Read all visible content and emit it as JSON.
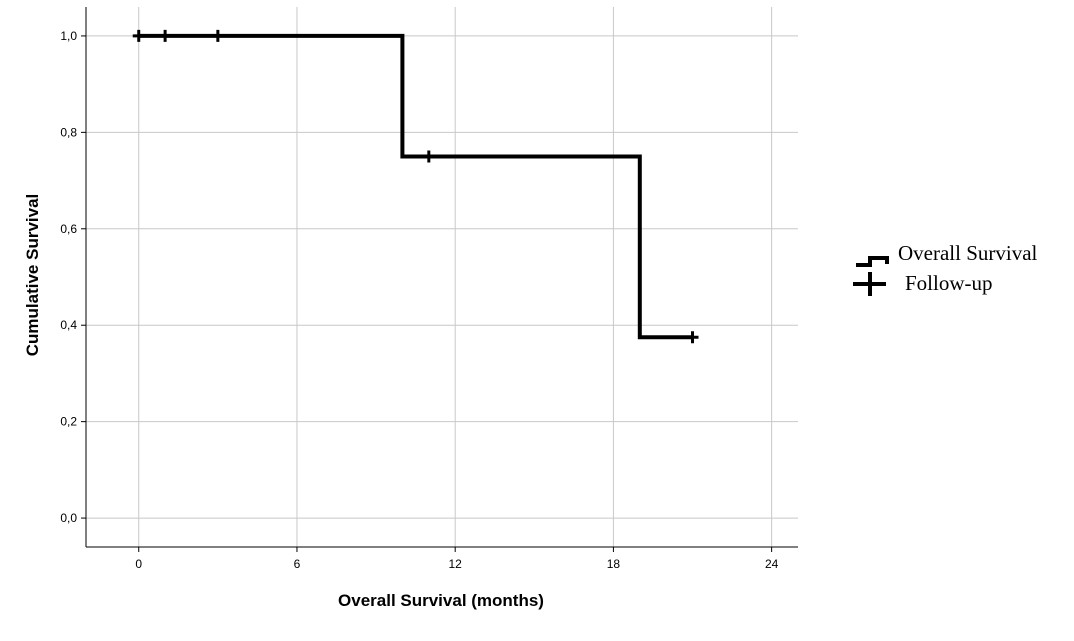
{
  "chart_data": {
    "type": "line",
    "xlabel": "Overall Survival (months)",
    "ylabel": "Cumulative Survival",
    "xlim": [
      -2,
      25
    ],
    "ylim": [
      -0.06,
      1.06
    ],
    "xticks": [
      0,
      6,
      12,
      18,
      24
    ],
    "xtick_labels": [
      "0",
      "6",
      "12",
      "18",
      "24"
    ],
    "yticks": [
      0,
      0.2,
      0.4,
      0.6,
      0.8,
      1.0
    ],
    "ytick_labels": [
      "0,0",
      "0,2",
      "0,4",
      "0,6",
      "0,8",
      "1,0"
    ],
    "grid": true,
    "legend_position": "right",
    "series": [
      {
        "name": "Overall Survival",
        "style": "step",
        "x": [
          0,
          10,
          10,
          19,
          19,
          21
        ],
        "y": [
          1.0,
          1.0,
          0.75,
          0.75,
          0.375,
          0.375
        ]
      },
      {
        "name": "Follow-up",
        "style": "censored",
        "x": [
          0,
          1,
          3,
          11,
          21
        ],
        "y": [
          1.0,
          1.0,
          1.0,
          0.75,
          0.375
        ]
      }
    ],
    "line_color": "#000000",
    "grid_color": "#c8c8c8"
  }
}
